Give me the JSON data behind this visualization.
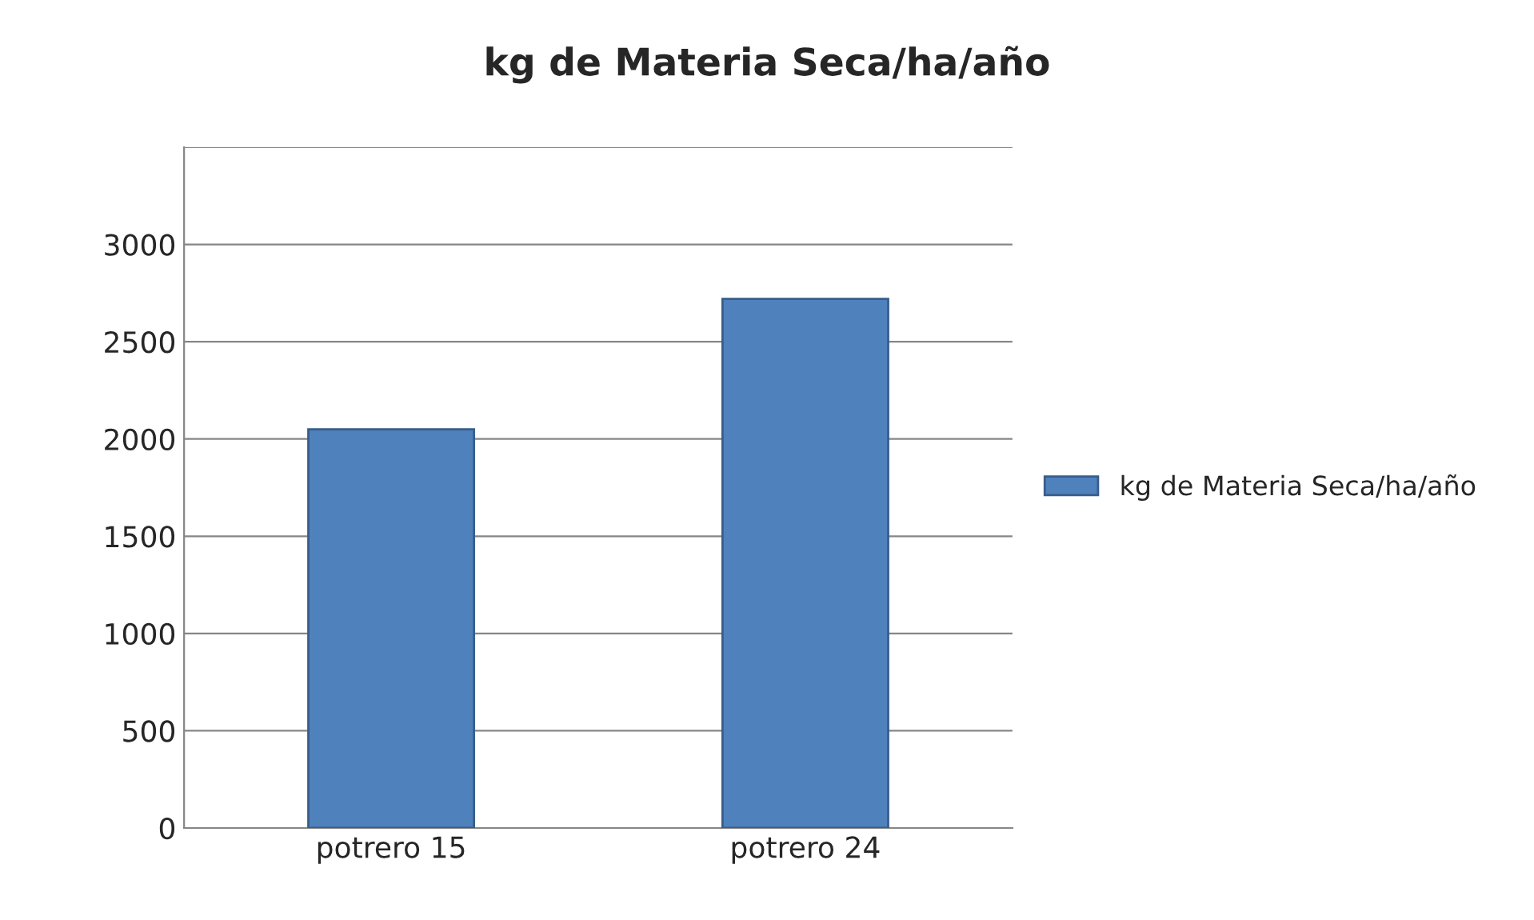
{
  "chart_data": {
    "type": "bar",
    "title": "kg de Materia Seca/ha/año",
    "categories": [
      "potrero 15",
      "potrero 24"
    ],
    "series": [
      {
        "name": "kg de Materia Seca/ha/año",
        "color": "#4f81bd",
        "values": [
          2050,
          2720
        ]
      }
    ],
    "ylim": [
      0,
      3500
    ],
    "yticks": [
      0,
      500,
      1000,
      1500,
      2000,
      2500,
      3000,
      {
        "value": 3500,
        "label": null
      }
    ],
    "grid": "y",
    "legend": "right"
  }
}
